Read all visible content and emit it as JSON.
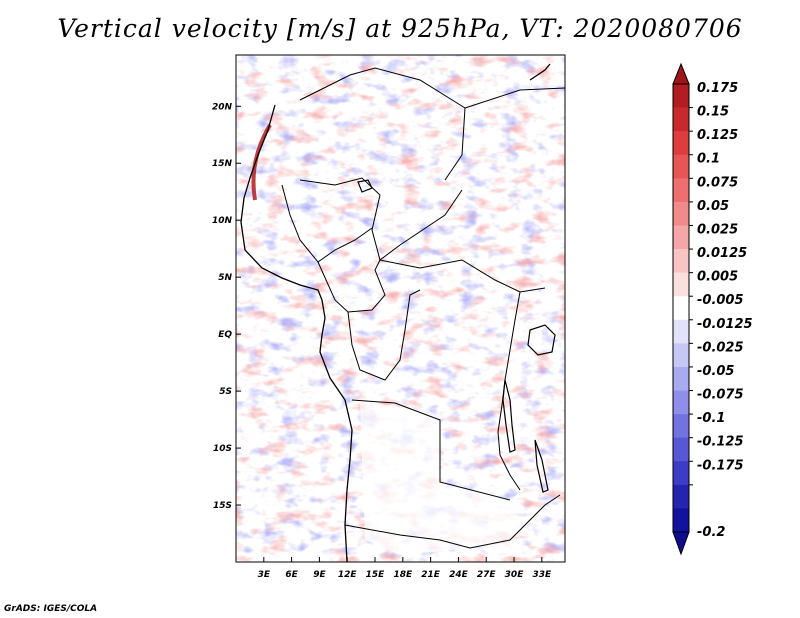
{
  "title": "Vertical velocity [m/s] at 925hPa, VT: 2020080706",
  "credit": "GrADS: IGES/COLA",
  "chart_data": {
    "type": "heatmap",
    "title": "Vertical velocity [m/s] at 925hPa, VT: 2020080706",
    "variable": "Vertical velocity",
    "units": "m/s",
    "level": "925hPa",
    "valid_time": "2020080706",
    "x_range": [
      0,
      35.5
    ],
    "y_range": [
      -20,
      24.5
    ],
    "x_ticks": [
      {
        "value": 3,
        "label": "3E"
      },
      {
        "value": 6,
        "label": "6E"
      },
      {
        "value": 9,
        "label": "9E"
      },
      {
        "value": 12,
        "label": "12E"
      },
      {
        "value": 15,
        "label": "15E"
      },
      {
        "value": 18,
        "label": "18E"
      },
      {
        "value": 21,
        "label": "21E"
      },
      {
        "value": 24,
        "label": "24E"
      },
      {
        "value": 27,
        "label": "27E"
      },
      {
        "value": 30,
        "label": "30E"
      },
      {
        "value": 33,
        "label": "33E"
      }
    ],
    "y_ticks": [
      {
        "value": 20,
        "label": "20N"
      },
      {
        "value": 15,
        "label": "15N"
      },
      {
        "value": 10,
        "label": "10N"
      },
      {
        "value": 5,
        "label": "5N"
      },
      {
        "value": 0,
        "label": "EQ"
      },
      {
        "value": -5,
        "label": "5S"
      },
      {
        "value": -10,
        "label": "10S"
      },
      {
        "value": -15,
        "label": "15S"
      }
    ],
    "colorbar": {
      "labels": [
        "0.175",
        "0.15",
        "0.125",
        "0.1",
        "0.075",
        "0.05",
        "0.025",
        "0.0125",
        "0.005",
        "-0.005",
        "-0.0125",
        "-0.025",
        "-0.05",
        "-0.075",
        "-0.1",
        "-0.125",
        "-0.175",
        "-0.2"
      ],
      "colors": [
        "#b11d21",
        "#c8292c",
        "#dd3d3d",
        "#e85555",
        "#ee6f6f",
        "#f18a8a",
        "#f5a6a6",
        "#f8c4c4",
        "#fbe0e0",
        "#ffffff",
        "#e2e2fb",
        "#c7c7f6",
        "#aaaaf1",
        "#8f8fea",
        "#7272e0",
        "#5858d6",
        "#3c3cc6",
        "#2424b0",
        "#1212a0"
      ],
      "top_color": "#a01518",
      "bottom_color": "#100c90"
    }
  }
}
